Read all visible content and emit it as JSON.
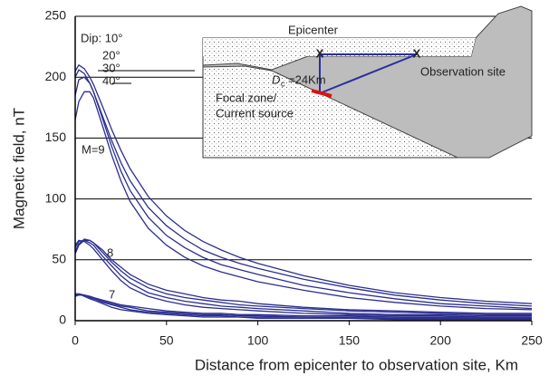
{
  "chart_data": {
    "type": "line",
    "x_label": "Distance from epicenter to  observation site, Km",
    "y_label": "Magnetic field, nT",
    "x": [
      0,
      2,
      5,
      8,
      10,
      15,
      20,
      25,
      30,
      40,
      50,
      60,
      70,
      80,
      90,
      100,
      125,
      150,
      175,
      200,
      225,
      250
    ],
    "series": [
      {
        "color": "#2b2f8f",
        "values": [
          205,
          210,
          207,
          200,
          194,
          176,
          157,
          140,
          125,
          102,
          86,
          74,
          65,
          58,
          52,
          47,
          37,
          29,
          23,
          19,
          16,
          14
        ]
      },
      {
        "color": "#2b2f8f",
        "values": [
          200,
          206,
          203,
          195,
          188,
          168,
          148,
          130,
          115,
          93,
          78,
          67,
          58,
          52,
          47,
          43,
          34,
          27,
          21,
          17,
          14,
          12
        ]
      },
      {
        "color": "#2b2f8f",
        "values": [
          185,
          198,
          200,
          195,
          188,
          166,
          143,
          123,
          107,
          85,
          70,
          60,
          52,
          46,
          42,
          38,
          29,
          23,
          18,
          14,
          12,
          10
        ]
      },
      {
        "color": "#2b2f8f",
        "values": [
          165,
          180,
          188,
          188,
          183,
          160,
          136,
          115,
          98,
          76,
          62,
          52,
          45,
          40,
          36,
          32,
          25,
          19,
          15,
          12,
          10,
          9
        ]
      },
      {
        "color": "#2b2f8f",
        "values": [
          55,
          62,
          66,
          66,
          64,
          58,
          50,
          44,
          38,
          30,
          25,
          22,
          19,
          17,
          16,
          14,
          11,
          9,
          8,
          7,
          6,
          6
        ]
      },
      {
        "color": "#2b2f8f",
        "values": [
          57,
          63,
          67,
          66,
          64,
          56,
          48,
          41,
          35,
          27,
          22,
          19,
          17,
          15,
          13,
          12,
          10,
          8,
          7,
          6,
          5,
          5
        ]
      },
      {
        "color": "#2b2f8f",
        "values": [
          60,
          65,
          66,
          64,
          62,
          53,
          45,
          37,
          31,
          23,
          19,
          16,
          14,
          12,
          11,
          10,
          8,
          6,
          5,
          5,
          4,
          4
        ]
      },
      {
        "color": "#2b2f8f",
        "values": [
          62,
          66,
          65,
          62,
          59,
          50,
          41,
          33,
          27,
          20,
          16,
          13,
          11,
          10,
          9,
          8,
          6,
          5,
          4,
          4,
          3,
          3
        ]
      },
      {
        "color": "#2b2f8f",
        "values": [
          20,
          21,
          21,
          20,
          19,
          17,
          15,
          13,
          12,
          10,
          8,
          7,
          6,
          6,
          5,
          5,
          4,
          4,
          3,
          3,
          3,
          3
        ]
      },
      {
        "color": "#2b2f8f",
        "values": [
          21,
          22,
          21,
          20,
          19,
          16,
          14,
          12,
          11,
          8,
          7,
          6,
          5,
          5,
          4,
          4,
          3,
          3,
          3,
          2,
          2,
          2
        ]
      },
      {
        "color": "#2b2f8f",
        "values": [
          21,
          22,
          21,
          19,
          18,
          15,
          13,
          11,
          9,
          7,
          6,
          5,
          4,
          4,
          3,
          3,
          3,
          2,
          2,
          2,
          2,
          2
        ]
      },
      {
        "color": "#2b2f8f",
        "values": [
          22,
          22,
          20,
          18,
          17,
          14,
          11,
          9,
          8,
          6,
          5,
          4,
          3,
          3,
          3,
          2,
          2,
          2,
          1,
          1,
          1,
          1
        ]
      }
    ],
    "xlim": [
      0,
      250
    ],
    "xticks": [
      0,
      50,
      100,
      150,
      200,
      250
    ],
    "ylim": [
      0,
      250
    ],
    "yticks": [
      0,
      50,
      100,
      150,
      200,
      250
    ],
    "grid": true,
    "annotations": [
      "Dip: 10°",
      "20°",
      "30°",
      "40°",
      "M=9",
      "8",
      "7"
    ],
    "inset": {
      "epicenter": "Epicenter",
      "observation_site": "Observation site",
      "mark": "X",
      "depth": "D",
      "depth_sub": "c",
      "depth_value": "=24Km",
      "focal_zone": "Focal zone/",
      "current_source": "Current source"
    }
  }
}
